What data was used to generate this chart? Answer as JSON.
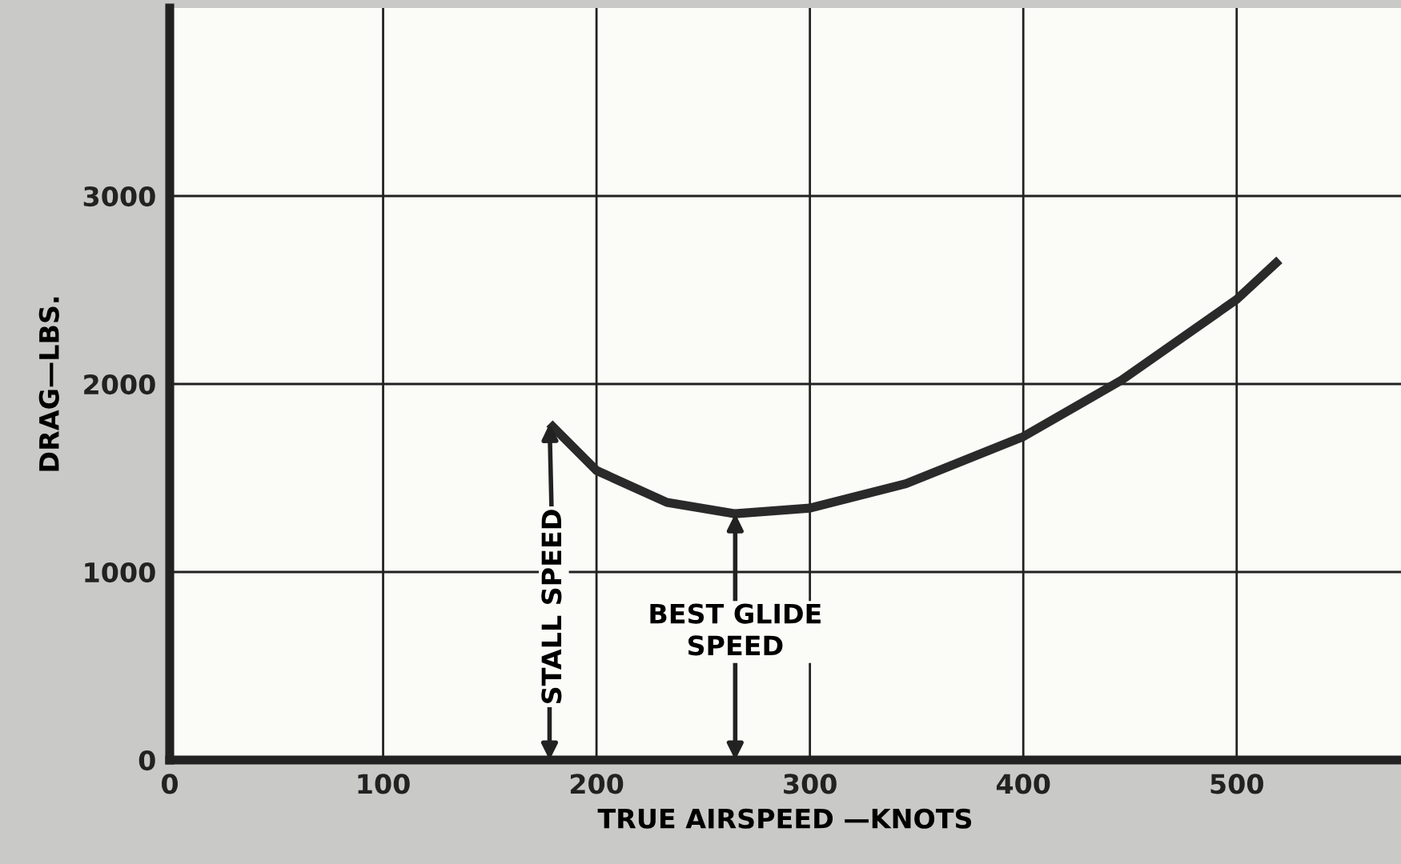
{
  "chart_data": {
    "type": "line",
    "xlabel": "TRUE AIRSPEED —KNOTS",
    "ylabel": "DRAG—LBS.",
    "x": [
      178,
      200,
      233,
      265,
      300,
      345,
      400,
      446,
      500,
      520
    ],
    "series": [
      {
        "color": "#2a2a2a",
        "values": [
          1790,
          1540,
          1370,
          1310,
          1340,
          1470,
          1720,
          2020,
          2450,
          2660
        ]
      }
    ],
    "xlim": [
      0,
      577
    ],
    "xticks": [
      0,
      100,
      200,
      300,
      400,
      500
    ],
    "ylim": [
      0,
      4000
    ],
    "yticks": [
      0,
      1000,
      2000,
      3000
    ],
    "grid": true,
    "marker": "none",
    "line_style": "solid",
    "annotations": [
      {
        "text": "STALL SPEED",
        "x": 178,
        "y": 1790
      },
      {
        "text": "BEST GLIDE\nSPEED",
        "x": 265,
        "y": 1310
      }
    ]
  }
}
